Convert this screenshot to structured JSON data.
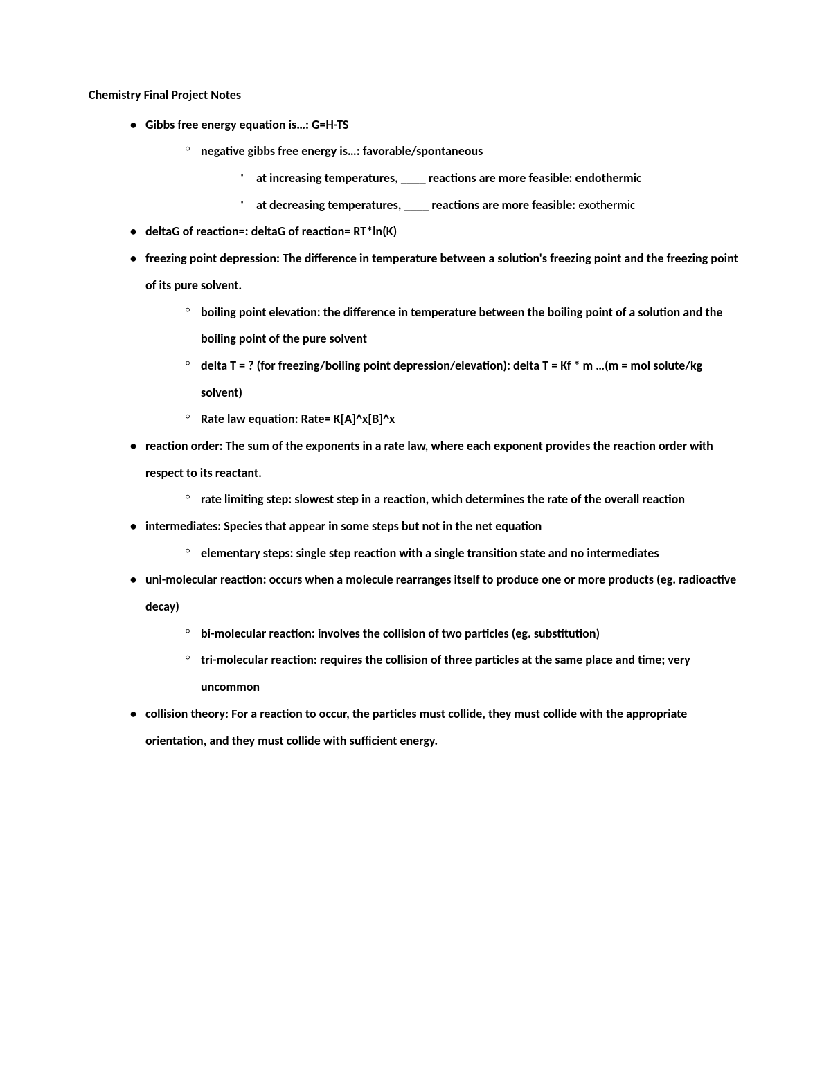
{
  "document": {
    "title": "Chemistry Final Project Notes",
    "font_family": "Calibri",
    "font_size_pt": 14,
    "text_color": "#000000",
    "background_color": "#ffffff",
    "line_height": 2.15,
    "bullets": {
      "level1": "•",
      "level2": "○",
      "level3": "▪"
    },
    "items": [
      {
        "text_bold": "Gibbs free energy equation is…: G=H-TS",
        "children": [
          {
            "text_bold": "negative gibbs free energy is…: favorable/spontaneous",
            "children": [
              {
                "text_bold": "at increasing temperatures, ____ reactions are more feasible: endothermic"
              },
              {
                "text_bold_part": "at decreasing temperatures, ____ reactions are more feasible: ",
                "text_plain_part": "exothermic"
              }
            ]
          }
        ]
      },
      {
        "text_bold": "deltaG of reaction=: deltaG of reaction= RT*ln(K)"
      },
      {
        "text_bold": "freezing point depression: The difference in temperature between a solution's freezing point and the freezing point of its pure solvent.",
        "children": [
          {
            "text_bold": "boiling point elevation: the difference in temperature between the boiling point of a solution and the boiling point of the pure solvent"
          },
          {
            "text_bold": "delta T = ? (for freezing/boiling point depression/elevation): delta T = Kf * m …(m = mol solute/kg solvent)"
          },
          {
            "text_bold": "Rate law equation: Rate= K[A]^x[B]^x"
          }
        ]
      },
      {
        "text_bold": "reaction order: The sum of the exponents in a rate law, where each exponent provides the reaction order with respect to its reactant.",
        "children": [
          {
            "text_bold": "rate limiting step: slowest step in a reaction, which determines the rate of the overall reaction"
          }
        ]
      },
      {
        "text_bold": "intermediates: Species that appear in some steps but not in the net equation",
        "children": [
          {
            "text_bold": "elementary steps: single step reaction with a single transition state and no intermediates"
          }
        ]
      },
      {
        "text_bold": "uni-molecular reaction: occurs when a molecule rearranges itself to produce one or more products (eg. radioactive decay)",
        "children": [
          {
            "text_bold": "bi-molecular reaction: involves the collision of two particles (eg. substitution)"
          },
          {
            "text_bold": "tri-molecular reaction: requires the collision of three particles at the same place and time; very uncommon"
          }
        ]
      },
      {
        "text_bold": "collision theory: For a reaction to occur, the particles must collide, they must collide with the appropriate orientation, and they must collide with sufficient energy."
      }
    ]
  }
}
